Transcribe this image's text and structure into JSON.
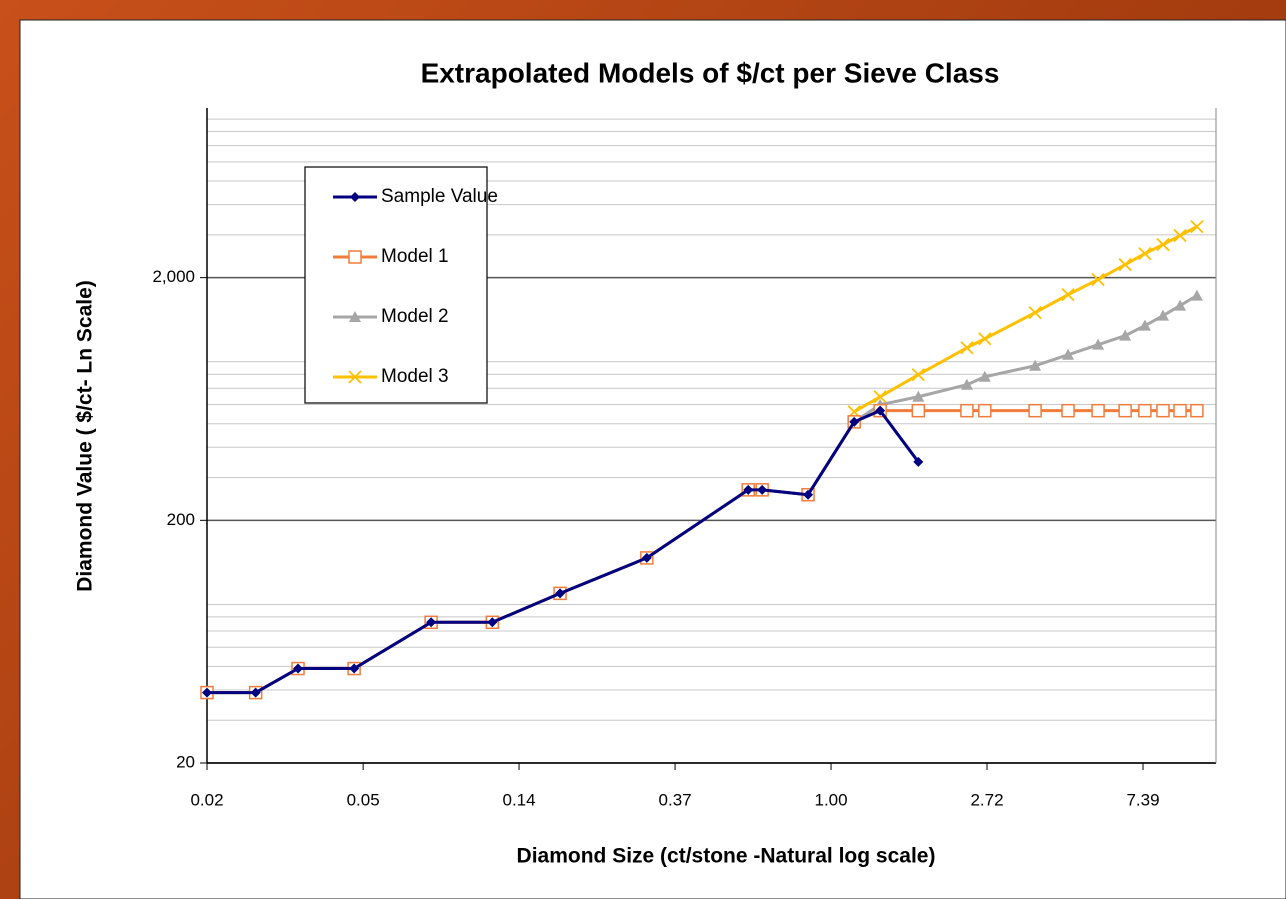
{
  "chart_data": {
    "type": "line",
    "title": "Extrapolated Models of $/ct per Sieve Class",
    "x_label": "Diamond Size (ct/stone -Natural log scale)",
    "y_label": "Diamond Value  ( $/ct- Ln Scale)",
    "x_log": true,
    "y_log": true,
    "xlim": [
      0.0183,
      11.8
    ],
    "ylim": [
      20,
      10000
    ],
    "xticks": [
      {
        "value": 0.0183,
        "label": "0.02"
      },
      {
        "value": 0.0498,
        "label": "0.05"
      },
      {
        "value": 0.1353,
        "label": "0.14"
      },
      {
        "value": 0.3679,
        "label": "0.37"
      },
      {
        "value": 1,
        "label": "1.00"
      },
      {
        "value": 2.7183,
        "label": "2.72"
      },
      {
        "value": 7.3891,
        "label": "7.39"
      }
    ],
    "yticks": [
      20,
      200,
      {
        "value": 2000,
        "label": "2,000"
      }
    ],
    "minor_gridlines": [
      30,
      40,
      50,
      60,
      70,
      80,
      90,
      300,
      400,
      500,
      600,
      700,
      800,
      900,
      3000,
      4000,
      5000,
      6000,
      7000,
      8000,
      9000
    ],
    "grid": true,
    "legend": "upper left",
    "x": [
      0.0183,
      0.025,
      0.0328,
      0.047,
      0.077,
      0.114,
      0.176,
      0.307,
      0.588,
      0.643,
      0.863,
      1.16,
      1.37,
      1.75,
      2.39,
      2.68,
      3.7,
      4.57,
      5.54,
      6.59,
      7.48,
      8.4,
      9.37,
      10.44
    ],
    "series": [
      {
        "name": "Sample Value",
        "color": "#000080",
        "marker": "diamond",
        "values": [
          39,
          39,
          49,
          49,
          76,
          76,
          100,
          140,
          267,
          267,
          255,
          509,
          566,
          348,
          null,
          null,
          null,
          null,
          null,
          null,
          null,
          null,
          null,
          null
        ]
      },
      {
        "name": "Model 1",
        "color": "#f07c3c",
        "marker": "square",
        "values": [
          39,
          39,
          49,
          49,
          76,
          76,
          100,
          140,
          267,
          267,
          255,
          509,
          566,
          566,
          566,
          566,
          566,
          566,
          566,
          566,
          566,
          566,
          566,
          566
        ]
      },
      {
        "name": "Model 2",
        "color": "#a6a6a6",
        "marker": "triangle",
        "values": [
          39,
          39,
          49,
          49,
          76,
          76,
          100,
          140,
          267,
          267,
          255,
          509,
          599,
          646,
          724,
          781,
          867,
          962,
          1059,
          1153,
          1268,
          1394,
          1534,
          1686
        ]
      },
      {
        "name": "Model 3",
        "color": "#ffc000",
        "marker": "x",
        "values": [
          null,
          null,
          null,
          null,
          null,
          null,
          null,
          null,
          null,
          null,
          null,
          560,
          646,
          796,
          1028,
          1120,
          1435,
          1702,
          1964,
          2264,
          2512,
          2737,
          2981,
          3245
        ]
      }
    ]
  }
}
